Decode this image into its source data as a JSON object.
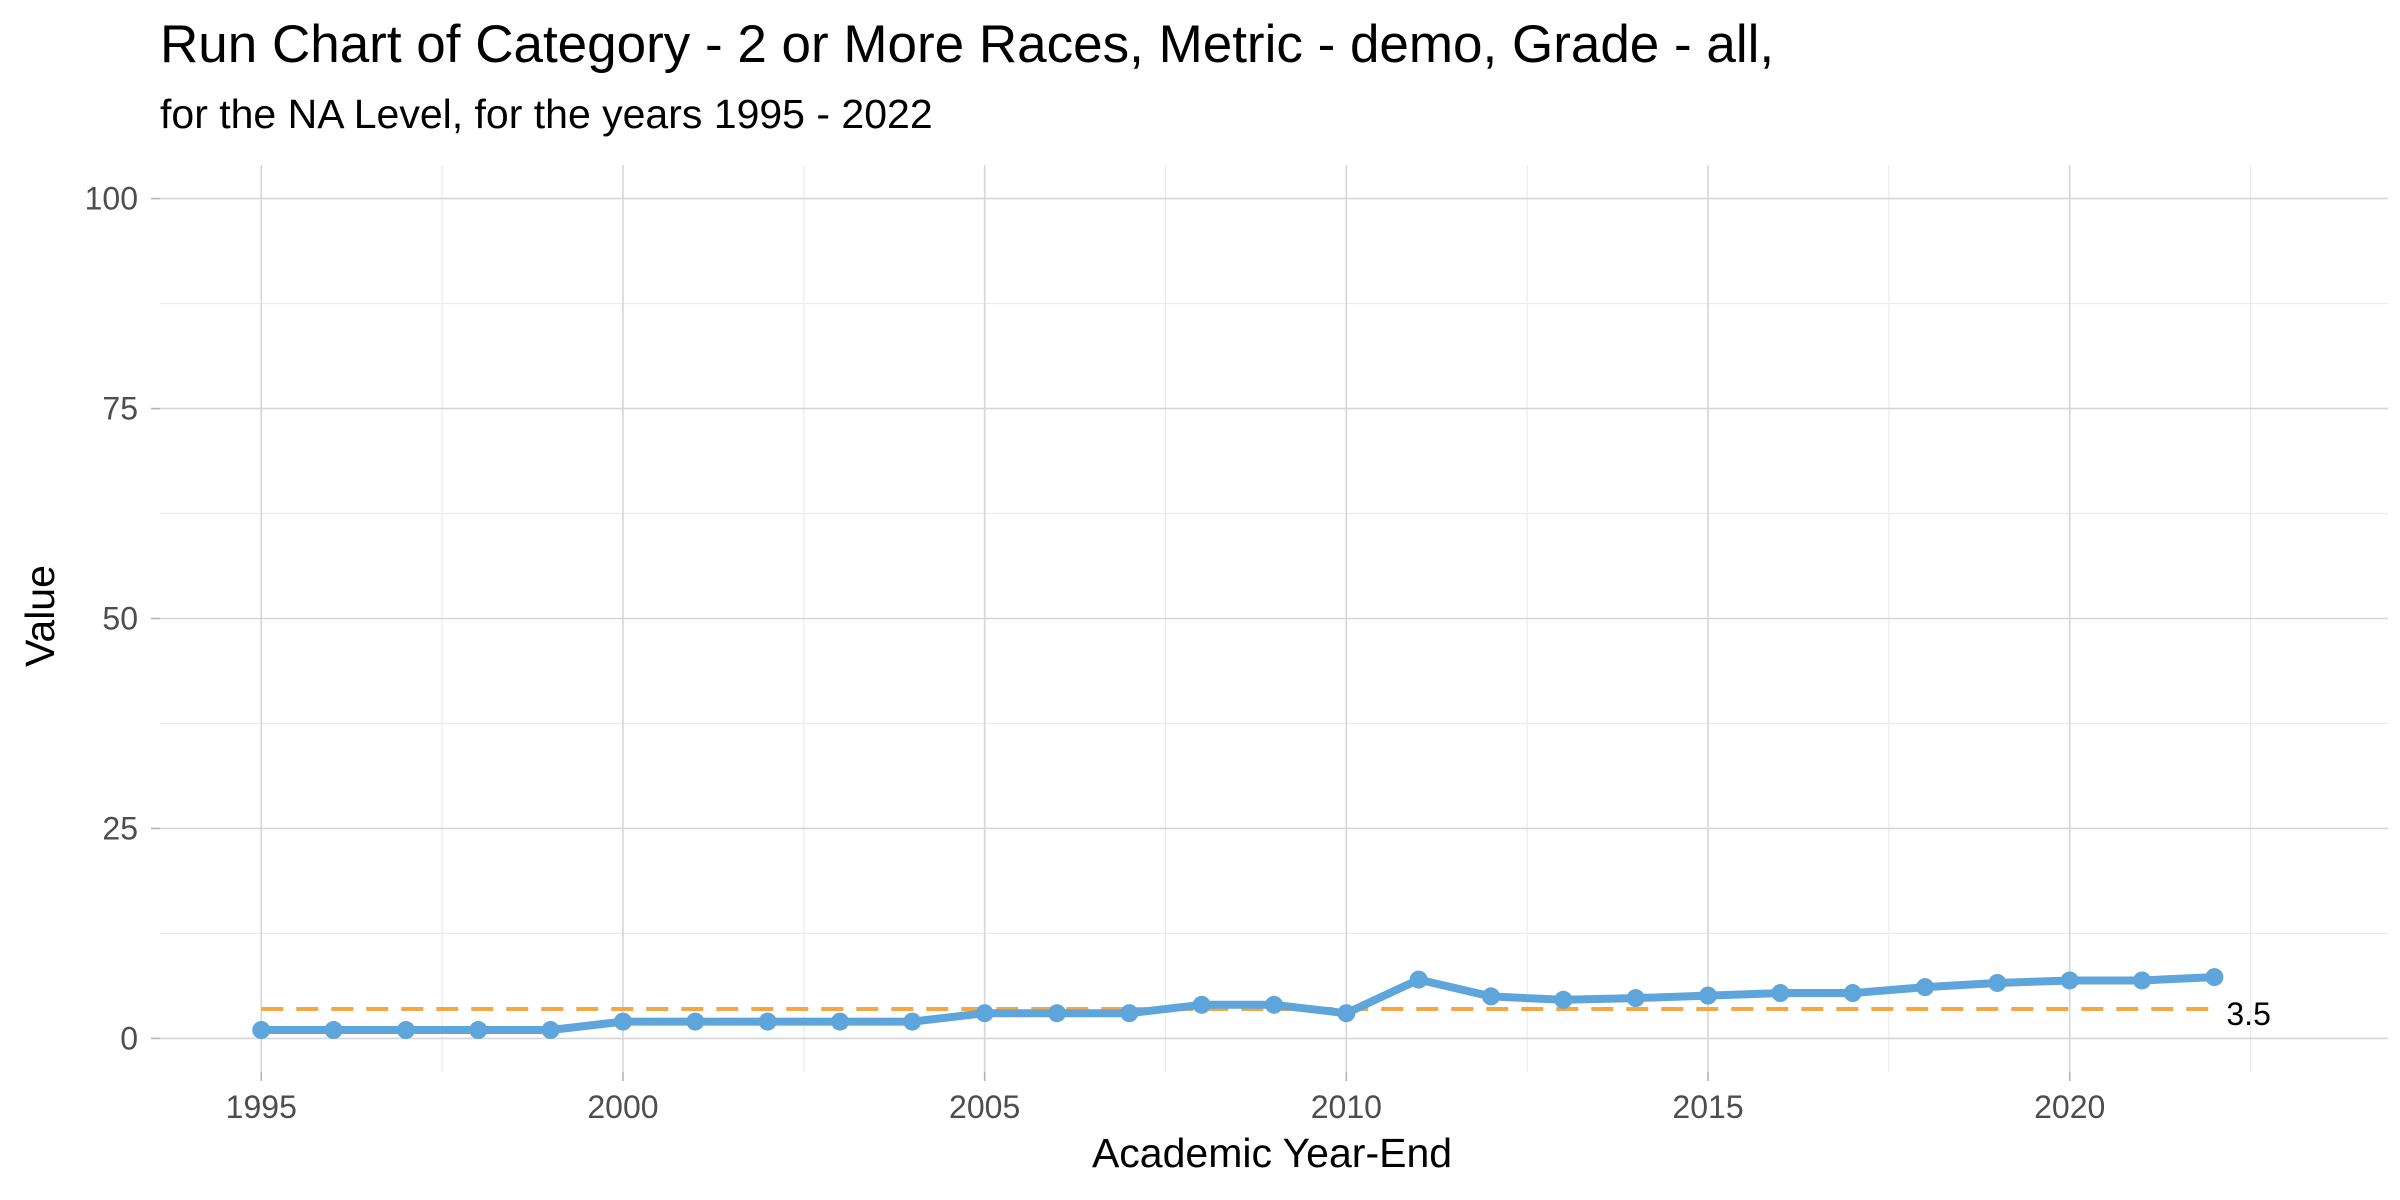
{
  "chart_data": {
    "type": "line",
    "title": "Run Chart of Category -  2 or More Races, Metric - demo, Grade - all,",
    "subtitle": "for the NA Level, for the years 1995 - 2022",
    "xlabel": "Academic Year-End",
    "ylabel": "Value",
    "xlim": [
      1993.6,
      2024.4
    ],
    "ylim": [
      -4,
      104
    ],
    "x_ticks": [
      1995,
      2000,
      2005,
      2010,
      2015,
      2020
    ],
    "y_ticks": [
      0,
      25,
      50,
      75,
      100
    ],
    "grid": true,
    "series": [
      {
        "x": [
          1995,
          1996,
          1997,
          1998,
          1999,
          2000,
          2001,
          2002,
          2003,
          2004,
          2005,
          2006,
          2007,
          2008,
          2009,
          2010,
          2011,
          2012,
          2013,
          2014,
          2015,
          2016,
          2017,
          2018,
          2019,
          2020,
          2021,
          2022
        ],
        "values": [
          1,
          1,
          1,
          1,
          1,
          2,
          2,
          2,
          2,
          2,
          3,
          3,
          3,
          4,
          4,
          3,
          7,
          5,
          4.6,
          4.8,
          5.1,
          5.4,
          5.4,
          6.1,
          6.6,
          6.9,
          6.9,
          7.3
        ],
        "color": "#5da5da"
      }
    ],
    "reference_line": {
      "value": 3.5,
      "label": "3.5",
      "x_start": 1995,
      "x_end": 2022,
      "color": "#f4a742",
      "style": "dashed"
    }
  }
}
